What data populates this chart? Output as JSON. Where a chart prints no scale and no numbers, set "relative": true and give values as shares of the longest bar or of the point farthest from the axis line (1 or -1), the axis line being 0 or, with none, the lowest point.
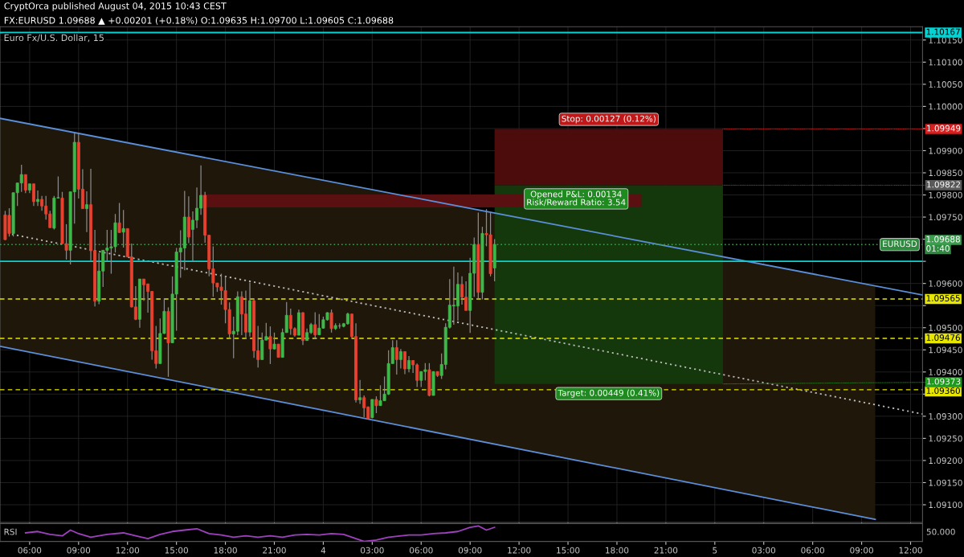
{
  "chart_data": [
    {
      "type": "candlestick",
      "title": "Euro Fx/U.S. Dollar, 15",
      "subtitle": "FX:EURUSD 1.09688 ▲ +0.00201 (+0.18%) O:1.09635 H:1.09700 L:1.09605 C:1.09688",
      "xlim": [
        "2015-08-03T04:11",
        "2015-08-05T12:44"
      ],
      "ylim": [
        1.0906,
        1.1018
      ],
      "yticks": [
        {
          "value": 1.091,
          "label": "1.09100"
        },
        {
          "value": 1.0915,
          "label": "1.09150"
        },
        {
          "value": 1.092,
          "label": "1.09200"
        },
        {
          "value": 1.0925,
          "label": "1.09250"
        },
        {
          "value": 1.093,
          "label": "1.09300"
        },
        {
          "value": 1.0935,
          "label": null
        },
        {
          "value": 1.094,
          "label": "1.09400"
        },
        {
          "value": 1.0945,
          "label": "1.09450"
        },
        {
          "value": 1.095,
          "label": "1.09500"
        },
        {
          "value": 1.0955,
          "label": null
        },
        {
          "value": 1.096,
          "label": "1.09600"
        },
        {
          "value": 1.0965,
          "label": null
        },
        {
          "value": 1.097,
          "label": null
        },
        {
          "value": 1.0975,
          "label": "1.09750"
        },
        {
          "value": 1.098,
          "label": "1.09800"
        },
        {
          "value": 1.0985,
          "label": "1.09850"
        },
        {
          "value": 1.099,
          "label": "1.09900"
        },
        {
          "value": 1.0995,
          "label": null
        },
        {
          "value": 1.1,
          "label": "1.10000"
        },
        {
          "value": 1.1005,
          "label": "1.10050"
        },
        {
          "value": 1.101,
          "label": "1.10100"
        },
        {
          "value": 1.1015,
          "label": "1.10150"
        }
      ],
      "tick_labels": "y",
      "grid": true,
      "ref_lines": [
        {
          "axis": "y",
          "value": 1.10167,
          "label": "1.10167",
          "color": "#00d4d4",
          "line_style": "solid"
        },
        {
          "axis": "y",
          "value": 1.0965,
          "label": null,
          "color": "#00d4d4",
          "line_style": "solid"
        },
        {
          "axis": "y",
          "value": 1.09688,
          "label": "1.09688",
          "color": "#3c9d4e",
          "line_style": "dotted"
        },
        {
          "axis": "y",
          "value": 1.09565,
          "label": "1.09565",
          "color": "#e6e600",
          "line_style": "dashed"
        },
        {
          "axis": "y",
          "value": 1.09476,
          "label": "1.09476",
          "color": "#e6e600",
          "line_style": "dashed"
        },
        {
          "axis": "y",
          "value": 1.0936,
          "label": "1.09360",
          "color": "#e6e600",
          "line_style": "dashed"
        }
      ],
      "annotations": [
        "CryptOrca published August 04, 2015 10:43 CEST",
        "01:40",
        {
          "text": "Stop: 0.00127 (0.12%)",
          "x": "2015-08-04T17:30",
          "y": 1.09949
        },
        {
          "text": "Opened P&L: 0.00134\nRisk/Reward Ratio: 3.54",
          "x": "2015-08-04T15:30",
          "y": 1.09822
        },
        {
          "text": "Target: 0.00449 (0.41%)",
          "x": "2015-08-04T17:30",
          "y": 1.09373
        },
        {
          "text": "EURUSD",
          "x": "2015-08-05T11:20",
          "y": 1.09688
        },
        {
          "text": "1.09949",
          "x": "2015-08-05T00:30",
          "y": 1.09949
        },
        {
          "text": "1.09822",
          "x": "2015-08-05T00:30",
          "y": 1.09822
        },
        {
          "text": "1.09373",
          "x": "2015-08-05T00:30",
          "y": 1.09373
        }
      ],
      "series": [
        {
          "type": "area",
          "x": [
            "2015-08-03T04:11",
            "2015-08-05T09:50"
          ],
          "lower": [
            1.09458,
            1.09067
          ],
          "upper": [
            1.09973,
            1.09594
          ],
          "values": [
            null,
            null
          ],
          "color": "#1f170a"
        },
        {
          "type": "area",
          "x": [
            "2015-08-04T10:30",
            "2015-08-05T00:30"
          ],
          "lower": [
            1.09822,
            1.09822
          ],
          "upper": [
            1.09949,
            1.09949
          ],
          "values": [
            null,
            null
          ],
          "color": "#4d0c0c"
        },
        {
          "type": "area",
          "x": [
            "2015-08-04T10:30",
            "2015-08-05T00:30"
          ],
          "lower": [
            1.09373,
            1.09373
          ],
          "upper": [
            1.09822,
            1.09822
          ],
          "values": [
            null,
            null
          ],
          "color": "#14380c"
        },
        {
          "type": "area",
          "x": [
            "2015-08-03T16:30",
            "2015-08-04T19:30"
          ],
          "lower": [
            1.09772,
            1.09772
          ],
          "upper": [
            1.09801,
            1.09801
          ],
          "values": [
            null,
            null
          ],
          "color": "#5a1010"
        },
        {
          "type": "line",
          "x": [
            "2015-08-03T04:11",
            "2015-08-05T12:44"
          ],
          "values": [
            1.09973,
            1.09574
          ],
          "color": "#5b8fd9",
          "line_style": "solid"
        },
        {
          "type": "line",
          "x": [
            "2015-08-03T04:11",
            "2015-08-05T09:50"
          ],
          "values": [
            1.09458,
            1.09067
          ],
          "color": "#5b8fd9",
          "line_style": "solid"
        },
        {
          "type": "line",
          "x": [
            "2015-08-03T04:55",
            "2015-08-05T12:44"
          ],
          "values": [
            1.09711,
            1.09305
          ],
          "color": "#bbbbbb",
          "line_style": "dotted"
        }
      ],
      "colors": [
        "#e8412f",
        "#e8412f",
        "#3fb84a",
        "#3fb84a",
        "#3fb84a",
        "#e8412f",
        "#3fb84a",
        "#e8412f",
        "#3fb84a",
        "#e8412f",
        "#e8412f",
        "#e8412f",
        "#3fb84a",
        "#3fb84a",
        "#e8412f",
        "#e8412f",
        "#3fb84a",
        "#3fb84a",
        "#e8412f",
        "#e8412f",
        "#3fb84a",
        "#e8412f",
        "#e8412f",
        "#3fb84a",
        "#3fb84a",
        "#3fb84a",
        "#3fb84a",
        "#3fb84a",
        "#e8412f",
        "#3fb84a",
        "#e8412f",
        "#e8412f",
        "#e8412f",
        "#3fb84a",
        "#e8412f",
        "#e8412f",
        "#e8412f",
        "#e8412f",
        "#3fb84a",
        "#3fb84a",
        "#e8412f",
        "#3fb84a",
        "#3fb84a",
        "#3fb84a",
        "#3fb84a",
        "#e8412f",
        "#3fb84a",
        "#3fb84a",
        "#3fb84a",
        "#e8412f",
        "#e8412f",
        "#e8412f",
        "#e8412f",
        "#e8412f",
        "#e8412f",
        "#e8412f",
        "#3fb84a",
        "#3fb84a",
        "#e8412f",
        "#e8412f",
        "#3fb84a",
        "#e8412f",
        "#e8412f",
        "#3fb84a",
        "#3fb84a",
        "#e8412f",
        "#3fb84a",
        "#e8412f",
        "#3fb84a",
        "#3fb84a",
        "#e8412f",
        "#e8412f",
        "#3fb84a",
        "#e8412f",
        "#3fb84a",
        "#3fb84a",
        "#e8412f",
        "#3fb84a",
        "#3fb84a",
        "#3fb84a",
        "#e8412f",
        "#3fb84a",
        "#3fb84a",
        "#3fb84a",
        "#3fb84a",
        "#e8412f",
        "#e8412f",
        "#3fb84a",
        "#e8412f",
        "#e8412f",
        "#3fb84a",
        "#e8412f",
        "#3fb84a",
        "#3fb84a",
        "#3fb84a",
        "#3fb84a",
        "#e8412f",
        "#3fb84a",
        "#e8412f",
        "#3fb84a",
        "#e8412f",
        "#e8412f",
        "#3fb84a",
        "#3fb84a",
        "#e8412f",
        "#3fb84a",
        "#e8412f",
        "#3fb84a",
        "#3fb84a",
        "#3fb84a",
        "#3fb84a",
        "#3fb84a",
        "#e8412f",
        "#e8412f",
        "#3fb84a",
        "#3fb84a",
        "#e8412f",
        "#3fb84a",
        "#e8412f",
        "#e8412f",
        "#3fb84a"
      ],
      "x": [
        "2015-08-03T04:30",
        "2015-08-03T04:45",
        "2015-08-03T05:00",
        "2015-08-03T05:15",
        "2015-08-03T05:30",
        "2015-08-03T05:45",
        "2015-08-03T06:00",
        "2015-08-03T06:15",
        "2015-08-03T06:30",
        "2015-08-03T06:45",
        "2015-08-03T07:00",
        "2015-08-03T07:15",
        "2015-08-03T07:30",
        "2015-08-03T07:45",
        "2015-08-03T08:00",
        "2015-08-03T08:15",
        "2015-08-03T08:30",
        "2015-08-03T08:45",
        "2015-08-03T09:00",
        "2015-08-03T09:15",
        "2015-08-03T09:30",
        "2015-08-03T09:45",
        "2015-08-03T10:00",
        "2015-08-03T10:15",
        "2015-08-03T10:30",
        "2015-08-03T10:45",
        "2015-08-03T11:00",
        "2015-08-03T11:15",
        "2015-08-03T11:30",
        "2015-08-03T11:45",
        "2015-08-03T12:00",
        "2015-08-03T12:15",
        "2015-08-03T12:30",
        "2015-08-03T12:45",
        "2015-08-03T13:00",
        "2015-08-03T13:15",
        "2015-08-03T13:30",
        "2015-08-03T13:45",
        "2015-08-03T14:00",
        "2015-08-03T14:15",
        "2015-08-03T14:30",
        "2015-08-03T14:45",
        "2015-08-03T15:00",
        "2015-08-03T15:15",
        "2015-08-03T15:30",
        "2015-08-03T15:45",
        "2015-08-03T16:00",
        "2015-08-03T16:15",
        "2015-08-03T16:30",
        "2015-08-03T16:45",
        "2015-08-03T17:00",
        "2015-08-03T17:15",
        "2015-08-03T17:30",
        "2015-08-03T17:45",
        "2015-08-03T18:00",
        "2015-08-03T18:15",
        "2015-08-03T18:30",
        "2015-08-03T18:45",
        "2015-08-03T19:00",
        "2015-08-03T19:15",
        "2015-08-03T19:30",
        "2015-08-03T19:45",
        "2015-08-03T20:00",
        "2015-08-03T20:15",
        "2015-08-03T20:30",
        "2015-08-03T20:45",
        "2015-08-03T21:00",
        "2015-08-03T21:15",
        "2015-08-03T21:30",
        "2015-08-03T21:45",
        "2015-08-03T22:00",
        "2015-08-03T22:15",
        "2015-08-03T22:30",
        "2015-08-03T22:45",
        "2015-08-03T23:00",
        "2015-08-03T23:15",
        "2015-08-03T23:30",
        "2015-08-03T23:45",
        "2015-08-04T00:00",
        "2015-08-04T00:15",
        "2015-08-04T00:30",
        "2015-08-04T00:45",
        "2015-08-04T01:00",
        "2015-08-04T01:15",
        "2015-08-04T01:30",
        "2015-08-04T01:45",
        "2015-08-04T02:00",
        "2015-08-04T02:15",
        "2015-08-04T02:30",
        "2015-08-04T02:45",
        "2015-08-04T03:00",
        "2015-08-04T03:15",
        "2015-08-04T03:30",
        "2015-08-04T03:45",
        "2015-08-04T04:00",
        "2015-08-04T04:15",
        "2015-08-04T04:30",
        "2015-08-04T04:45",
        "2015-08-04T05:00",
        "2015-08-04T05:15",
        "2015-08-04T05:30",
        "2015-08-04T05:45",
        "2015-08-04T06:00",
        "2015-08-04T06:15",
        "2015-08-04T06:30",
        "2015-08-04T06:45",
        "2015-08-04T07:00",
        "2015-08-04T07:15",
        "2015-08-04T07:30",
        "2015-08-04T07:45",
        "2015-08-04T08:00",
        "2015-08-04T08:15",
        "2015-08-04T08:30",
        "2015-08-04T08:45",
        "2015-08-04T09:00",
        "2015-08-04T09:15",
        "2015-08-04T09:30",
        "2015-08-04T09:45",
        "2015-08-04T10:00",
        "2015-08-04T10:15",
        "2015-08-04T10:30"
      ],
      "ohlc": [
        [
          1.09755,
          1.09764,
          1.09698,
          1.09699
        ],
        [
          1.09754,
          1.0977,
          1.09706,
          1.09713
        ],
        [
          1.09713,
          1.09805,
          1.09706,
          1.09805
        ],
        [
          1.09805,
          1.09827,
          1.09775,
          1.09827
        ],
        [
          1.09827,
          1.09868,
          1.09807,
          1.09846
        ],
        [
          1.09846,
          1.09846,
          1.09804,
          1.09811
        ],
        [
          1.09811,
          1.09825,
          1.09804,
          1.09825
        ],
        [
          1.09825,
          1.09825,
          1.09775,
          1.09785
        ],
        [
          1.09785,
          1.0981,
          1.09775,
          1.0979
        ],
        [
          1.0979,
          1.09798,
          1.09764,
          1.09775
        ],
        [
          1.09775,
          1.09798,
          1.09744,
          1.09757
        ],
        [
          1.09757,
          1.09764,
          1.09726,
          1.09726
        ],
        [
          1.09725,
          1.09798,
          1.09722,
          1.09793
        ],
        [
          1.09793,
          1.09842,
          1.09792,
          1.09794
        ],
        [
          1.09793,
          1.09807,
          1.0969,
          1.0969
        ],
        [
          1.0969,
          1.09734,
          1.09654,
          1.09675
        ],
        [
          1.09675,
          1.09807,
          1.09643,
          1.09807
        ],
        [
          1.09807,
          1.09941,
          1.09735,
          1.09919
        ],
        [
          1.09919,
          1.09941,
          1.09792,
          1.09813
        ],
        [
          1.09813,
          1.09858,
          1.09769,
          1.09769
        ],
        [
          1.09769,
          1.09808,
          1.09716,
          1.09778
        ],
        [
          1.09778,
          1.09859,
          1.09652,
          1.09674
        ],
        [
          1.09674,
          1.09721,
          1.09548,
          1.0956
        ],
        [
          1.0956,
          1.09669,
          1.09553,
          1.09628
        ],
        [
          1.09628,
          1.09675,
          1.09592,
          1.09675
        ],
        [
          1.09675,
          1.09721,
          1.09649,
          1.0968
        ],
        [
          1.0968,
          1.09721,
          1.09622,
          1.09683
        ],
        [
          1.09683,
          1.09757,
          1.0967,
          1.09737
        ],
        [
          1.09737,
          1.09782,
          1.09715,
          1.09715
        ],
        [
          1.09716,
          1.09766,
          1.09681,
          1.09724
        ],
        [
          1.09724,
          1.09724,
          1.0966,
          1.0966
        ],
        [
          1.0966,
          1.0969,
          1.09546,
          1.09547
        ],
        [
          1.09547,
          1.09594,
          1.09517,
          1.09519
        ],
        [
          1.09519,
          1.0961,
          1.095,
          1.0961
        ],
        [
          1.0961,
          1.0961,
          1.09561,
          1.09597
        ],
        [
          1.09599,
          1.09599,
          1.09534,
          1.09582
        ],
        [
          1.09582,
          1.09582,
          1.09428,
          1.09448
        ],
        [
          1.09448,
          1.09504,
          1.09408,
          1.09419
        ],
        [
          1.09419,
          1.09521,
          1.09419,
          1.09487
        ],
        [
          1.09487,
          1.09566,
          1.09486,
          1.09537
        ],
        [
          1.09537,
          1.09546,
          1.09389,
          1.09466
        ],
        [
          1.09466,
          1.09616,
          1.09466,
          1.09576
        ],
        [
          1.09576,
          1.0968,
          1.09493,
          1.09671
        ],
        [
          1.09671,
          1.0972,
          1.09613,
          1.0968
        ],
        [
          1.0968,
          1.09809,
          1.0963,
          1.0975
        ],
        [
          1.0975,
          1.09797,
          1.09691,
          1.09705
        ],
        [
          1.09722,
          1.09763,
          1.0965,
          1.09743
        ],
        [
          1.09743,
          1.09817,
          1.09725,
          1.0977
        ],
        [
          1.0977,
          1.09867,
          1.09755,
          1.09799
        ],
        [
          1.09799,
          1.09807,
          1.09692,
          1.09709
        ],
        [
          1.09709,
          1.09709,
          1.09616,
          1.09633
        ],
        [
          1.09633,
          1.09684,
          1.0957,
          1.09601
        ],
        [
          1.09601,
          1.09601,
          1.09581,
          1.09592
        ],
        [
          1.09592,
          1.09622,
          1.09552,
          1.09584
        ],
        [
          1.09584,
          1.09616,
          1.0951,
          1.09541
        ],
        [
          1.09541,
          1.09557,
          1.09475,
          1.09486
        ],
        [
          1.09486,
          1.09525,
          1.09431,
          1.09492
        ],
        [
          1.09492,
          1.09582,
          1.09483,
          1.0957
        ],
        [
          1.0957,
          1.09582,
          1.09483,
          1.09531
        ],
        [
          1.09531,
          1.09584,
          1.09474,
          1.0949
        ],
        [
          1.0949,
          1.09602,
          1.0948,
          1.09561
        ],
        [
          1.09561,
          1.09565,
          1.09432,
          1.09448
        ],
        [
          1.09448,
          1.09504,
          1.0941,
          1.09428
        ],
        [
          1.09428,
          1.09489,
          1.09428,
          1.09472
        ],
        [
          1.09472,
          1.09511,
          1.09472,
          1.0948
        ],
        [
          1.0948,
          1.09503,
          1.09418,
          1.09452
        ],
        [
          1.09452,
          1.09489,
          1.09451,
          1.09463
        ],
        [
          1.09463,
          1.09463,
          1.09433,
          1.09433
        ],
        [
          1.09433,
          1.09498,
          1.09433,
          1.09489
        ],
        [
          1.09489,
          1.09558,
          1.09489,
          1.09528
        ],
        [
          1.09528,
          1.09543,
          1.09484,
          1.09498
        ],
        [
          1.09498,
          1.09501,
          1.0948,
          1.09483
        ],
        [
          1.09483,
          1.09541,
          1.09483,
          1.09534
        ],
        [
          1.09534,
          1.09535,
          1.09461,
          1.09471
        ],
        [
          1.09471,
          1.09498,
          1.09471,
          1.09489
        ],
        [
          1.09489,
          1.09511,
          1.09486,
          1.09507
        ],
        [
          1.09507,
          1.09535,
          1.09475,
          1.09484
        ],
        [
          1.09484,
          1.09531,
          1.09484,
          1.09499
        ],
        [
          1.09499,
          1.09525,
          1.09498,
          1.09518
        ],
        [
          1.09518,
          1.09535,
          1.09516,
          1.09534
        ],
        [
          1.09534,
          1.09541,
          1.09489,
          1.09498
        ],
        [
          1.09498,
          1.0951,
          1.09495,
          1.09505
        ],
        [
          1.09504,
          1.0951,
          1.09498,
          1.09504
        ],
        [
          1.09503,
          1.09511,
          1.09501,
          1.09509
        ],
        [
          1.09509,
          1.09534,
          1.09507,
          1.09531
        ],
        [
          1.09531,
          1.09531,
          1.09477,
          1.0948
        ],
        [
          1.0948,
          1.0951,
          1.09331,
          1.09337
        ],
        [
          1.09337,
          1.09382,
          1.09328,
          1.09342
        ],
        [
          1.09342,
          1.09347,
          1.09298,
          1.09319
        ],
        [
          1.09321,
          1.09322,
          1.09295,
          1.09295
        ],
        [
          1.09297,
          1.09338,
          1.09295,
          1.09338
        ],
        [
          1.09338,
          1.09345,
          1.09307,
          1.09324
        ],
        [
          1.09324,
          1.0937,
          1.09324,
          1.09335
        ],
        [
          1.09335,
          1.0939,
          1.09335,
          1.0935
        ],
        [
          1.0935,
          1.09449,
          1.09348,
          1.09419
        ],
        [
          1.09419,
          1.09472,
          1.09419,
          1.09455
        ],
        [
          1.09455,
          1.09472,
          1.09394,
          1.09428
        ],
        [
          1.09428,
          1.09452,
          1.09408,
          1.09446
        ],
        [
          1.09446,
          1.09446,
          1.09395,
          1.09407
        ],
        [
          1.09407,
          1.09436,
          1.09399,
          1.09426
        ],
        [
          1.09426,
          1.09426,
          1.09398,
          1.09416
        ],
        [
          1.09416,
          1.09419,
          1.09366,
          1.09381
        ],
        [
          1.09381,
          1.09401,
          1.09366,
          1.09401
        ],
        [
          1.09401,
          1.0942,
          1.09381,
          1.09405
        ],
        [
          1.09405,
          1.0942,
          1.09345,
          1.09347
        ],
        [
          1.09347,
          1.09401,
          1.09347,
          1.09401
        ],
        [
          1.09401,
          1.09401,
          1.09389,
          1.09392
        ],
        [
          1.09392,
          1.09442,
          1.09384,
          1.09417
        ],
        [
          1.09417,
          1.0951,
          1.09406,
          1.09501
        ],
        [
          1.09501,
          1.0961,
          1.09498,
          1.09551
        ],
        [
          1.09549,
          1.09638,
          1.09507,
          1.09551
        ],
        [
          1.09549,
          1.09625,
          1.09516,
          1.09598
        ],
        [
          1.09598,
          1.09616,
          1.09552,
          1.09569
        ],
        [
          1.09569,
          1.09605,
          1.09539,
          1.09539
        ],
        [
          1.09539,
          1.09658,
          1.09488,
          1.09623
        ],
        [
          1.09623,
          1.09704,
          1.0957,
          1.09688
        ],
        [
          1.09688,
          1.0976,
          1.09564,
          1.0958
        ],
        [
          1.0958,
          1.09728,
          1.09564,
          1.09713
        ],
        [
          1.09713,
          1.09768,
          1.09684,
          1.0971
        ],
        [
          1.0971,
          1.0976,
          1.09616,
          1.09622
        ],
        [
          1.09635,
          1.097,
          1.09605,
          1.09688
        ]
      ]
    },
    {
      "type": "line",
      "title": "RSI",
      "relative": true,
      "tick_labels": "x",
      "xlim": [
        "2015-08-03T04:11",
        "2015-08-05T12:44"
      ],
      "xticks": [
        {
          "value": "2015-08-03T06:00",
          "label": "06:00"
        },
        {
          "value": "2015-08-03T09:00",
          "label": "09:00"
        },
        {
          "value": "2015-08-03T12:00",
          "label": "12:00"
        },
        {
          "value": "2015-08-03T15:00",
          "label": "15:00"
        },
        {
          "value": "2015-08-03T18:00",
          "label": "18:00"
        },
        {
          "value": "2015-08-03T21:00",
          "label": "21:00"
        },
        {
          "value": "2015-08-04T00:00",
          "label": "4"
        },
        {
          "value": "2015-08-04T03:00",
          "label": "03:00"
        },
        {
          "value": "2015-08-04T06:00",
          "label": "06:00"
        },
        {
          "value": "2015-08-04T09:00",
          "label": "09:00"
        },
        {
          "value": "2015-08-04T12:00",
          "label": "12:00"
        },
        {
          "value": "2015-08-04T15:00",
          "label": "15:00"
        },
        {
          "value": "2015-08-04T18:00",
          "label": "18:00"
        },
        {
          "value": "2015-08-04T21:00",
          "label": "21:00"
        },
        {
          "value": "2015-08-05T00:00",
          "label": "5"
        },
        {
          "value": "2015-08-05T03:00",
          "label": "03:00"
        },
        {
          "value": "2015-08-05T06:00",
          "label": "06:00"
        },
        {
          "value": "2015-08-05T09:00",
          "label": "09:00"
        },
        {
          "value": "2015-08-05T12:00",
          "label": "12:00"
        }
      ],
      "annotations": [
        "50.000"
      ],
      "series": [
        {
          "color": "#a040c0",
          "x": [
            "2015-08-03T05:45",
            "2015-08-03T06:30",
            "2015-08-03T07:15",
            "2015-08-03T08:00",
            "2015-08-03T08:30",
            "2015-08-03T09:00",
            "2015-08-03T09:45",
            "2015-08-03T10:45",
            "2015-08-03T11:45",
            "2015-08-03T12:30",
            "2015-08-03T13:15",
            "2015-08-03T14:00",
            "2015-08-03T14:45",
            "2015-08-03T15:30",
            "2015-08-03T16:15",
            "2015-08-03T17:00",
            "2015-08-03T17:45",
            "2015-08-03T18:30",
            "2015-08-03T19:15",
            "2015-08-03T20:00",
            "2015-08-03T20:45",
            "2015-08-03T21:30",
            "2015-08-03T22:15",
            "2015-08-03T23:00",
            "2015-08-03T23:45",
            "2015-08-04T00:30",
            "2015-08-04T01:15",
            "2015-08-04T02:00",
            "2015-08-04T02:30",
            "2015-08-04T03:15",
            "2015-08-04T04:00",
            "2015-08-04T05:15",
            "2015-08-04T06:00",
            "2015-08-04T06:45",
            "2015-08-04T07:30",
            "2015-08-04T08:15",
            "2015-08-04T09:00",
            "2015-08-04T09:30",
            "2015-08-04T10:00",
            "2015-08-04T10:30"
          ],
          "values": [
            0.55,
            0.64,
            0.45,
            0.36,
            0.73,
            0.5,
            0.27,
            0.45,
            0.55,
            0.36,
            0.18,
            0.45,
            0.64,
            0.73,
            0.82,
            0.5,
            0.41,
            0.27,
            0.36,
            0.27,
            0.36,
            0.27,
            0.41,
            0.45,
            0.41,
            0.5,
            0.45,
            0.18,
            0,
            0.09,
            0.27,
            0.41,
            0.41,
            0.5,
            0.55,
            0.64,
            0.91,
            1,
            0.73,
            0.91
          ]
        }
      ]
    }
  ]
}
